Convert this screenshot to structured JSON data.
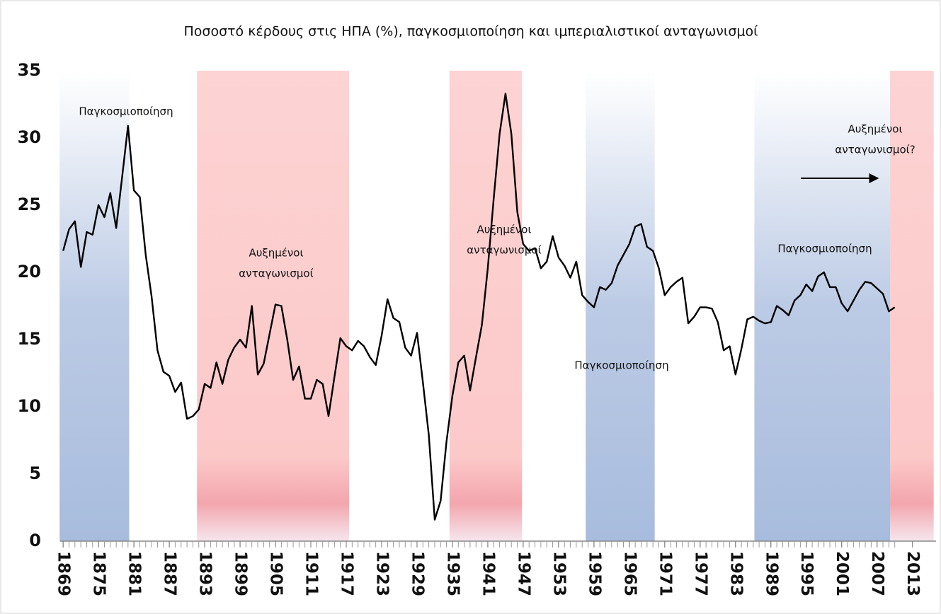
{
  "chart_data": {
    "type": "line",
    "title": "Ποσοστό κέρδους στις ΗΠΑ (%), παγκοσμιοποίηση και ιμπεριαλιστικοί ανταγωνισμοί",
    "x": [
      1869,
      1870,
      1871,
      1872,
      1873,
      1874,
      1875,
      1876,
      1877,
      1878,
      1879,
      1880,
      1881,
      1882,
      1883,
      1884,
      1885,
      1886,
      1887,
      1888,
      1889,
      1890,
      1891,
      1892,
      1893,
      1894,
      1895,
      1896,
      1897,
      1898,
      1899,
      1900,
      1901,
      1902,
      1903,
      1904,
      1905,
      1906,
      1907,
      1908,
      1909,
      1910,
      1911,
      1912,
      1913,
      1914,
      1915,
      1916,
      1917,
      1918,
      1919,
      1920,
      1921,
      1922,
      1923,
      1924,
      1925,
      1926,
      1927,
      1928,
      1929,
      1930,
      1931,
      1932,
      1933,
      1934,
      1935,
      1936,
      1937,
      1938,
      1939,
      1940,
      1941,
      1942,
      1943,
      1944,
      1945,
      1946,
      1947,
      1948,
      1949,
      1950,
      1951,
      1952,
      1953,
      1954,
      1955,
      1956,
      1957,
      1958,
      1959,
      1960,
      1961,
      1962,
      1963,
      1964,
      1965,
      1966,
      1967,
      1968,
      1969,
      1970,
      1971,
      1972,
      1973,
      1974,
      1975,
      1976,
      1977,
      1978,
      1979,
      1980,
      1981,
      1982,
      1983,
      1984,
      1985,
      1986,
      1987,
      1988,
      1989,
      1990,
      1991,
      1992,
      1993,
      1994,
      1995,
      1996,
      1997,
      1998,
      1999,
      2000,
      2001,
      2002,
      2003,
      2004,
      2005,
      2006,
      2007,
      2008,
      2009,
      2010
    ],
    "series": [
      {
        "color": "#000000",
        "values": [
          21.6,
          23.2,
          23.8,
          20.4,
          23,
          22.8,
          25,
          24.1,
          25.9,
          23.3,
          27.1,
          30.9,
          26.1,
          25.6,
          21.3,
          18.2,
          14.2,
          12.6,
          12.3,
          11.1,
          11.8,
          9.1,
          9.3,
          9.8,
          11.7,
          11.4,
          13.3,
          11.7,
          13.5,
          14.4,
          15,
          14.4,
          17.5,
          12.4,
          13.2,
          15.4,
          17.6,
          17.5,
          15,
          12,
          13,
          10.6,
          10.6,
          12,
          11.7,
          9.3,
          12.2,
          15.1,
          14.5,
          14.2,
          14.9,
          14.5,
          13.7,
          13.1,
          15.3,
          18,
          16.6,
          16.3,
          14.4,
          13.8,
          15.5,
          11.8,
          7.9,
          1.6,
          3,
          7.4,
          10.8,
          13.3,
          13.8,
          11.2,
          13.7,
          16.1,
          20.3,
          25.5,
          30.3,
          33.3,
          30.3,
          24.5,
          22.1,
          21.6,
          21.8,
          20.3,
          20.8,
          22.7,
          21.1,
          20.5,
          19.6,
          20.8,
          18.3,
          17.8,
          17.4,
          18.9,
          18.7,
          19.2,
          20.5,
          21.3,
          22.1,
          23.4,
          23.6,
          21.9,
          21.6,
          20.3,
          18.3,
          18.9,
          19.3,
          19.6,
          16.2,
          16.7,
          17.4,
          17.4,
          17.3,
          16.3,
          14.2,
          14.5,
          12.4,
          14.3,
          16.5,
          16.7,
          16.4,
          16.2,
          16.3,
          17.5,
          17.2,
          16.8,
          17.9,
          18.3,
          19.1,
          18.6,
          19.7,
          20,
          18.9,
          18.9,
          17.7,
          17.1,
          17.9,
          18.7,
          19.3,
          19.2,
          18.8,
          18.4,
          17.1,
          17.4
        ]
      }
    ],
    "xlim": [
      1868.5,
      2017
    ],
    "xticks": [
      1869,
      1875,
      1881,
      1887,
      1893,
      1899,
      1905,
      1911,
      1917,
      1923,
      1929,
      1935,
      1941,
      1947,
      1953,
      1959,
      1965,
      1971,
      1977,
      1983,
      1989,
      1995,
      2001,
      2007,
      2013
    ],
    "ylim": [
      0,
      35
    ],
    "yticks": [
      0,
      5,
      10,
      15,
      20,
      25,
      30,
      35
    ],
    "bands": [
      {
        "start": 1868.4,
        "end": 1880.2,
        "color": "blue"
      },
      {
        "start": 1891.7,
        "end": 1917.5,
        "color": "red"
      },
      {
        "start": 1934.5,
        "end": 1946.8,
        "color": "red"
      },
      {
        "start": 1957.6,
        "end": 1969.3,
        "color": "blue"
      },
      {
        "start": 1986.2,
        "end": 2009.2,
        "color": "blue"
      },
      {
        "start": 2009.2,
        "end": 2016.6,
        "color": "red"
      }
    ],
    "annotations": [
      {
        "lines": [
          "Παγκοσμιοποίηση"
        ]
      },
      {
        "lines": [
          "Αυξημένοι",
          "ανταγωνισμοί"
        ]
      },
      {
        "lines": [
          "Αυξημένοι",
          "ανταγωνισμοί"
        ]
      },
      {
        "lines": [
          "Παγκοσμιοποίηση"
        ]
      },
      {
        "lines": [
          "Παγκοσμιοποίηση"
        ]
      },
      {
        "lines": [
          "Αυξημένοι",
          "ανταγωνισμοί?"
        ]
      }
    ]
  }
}
